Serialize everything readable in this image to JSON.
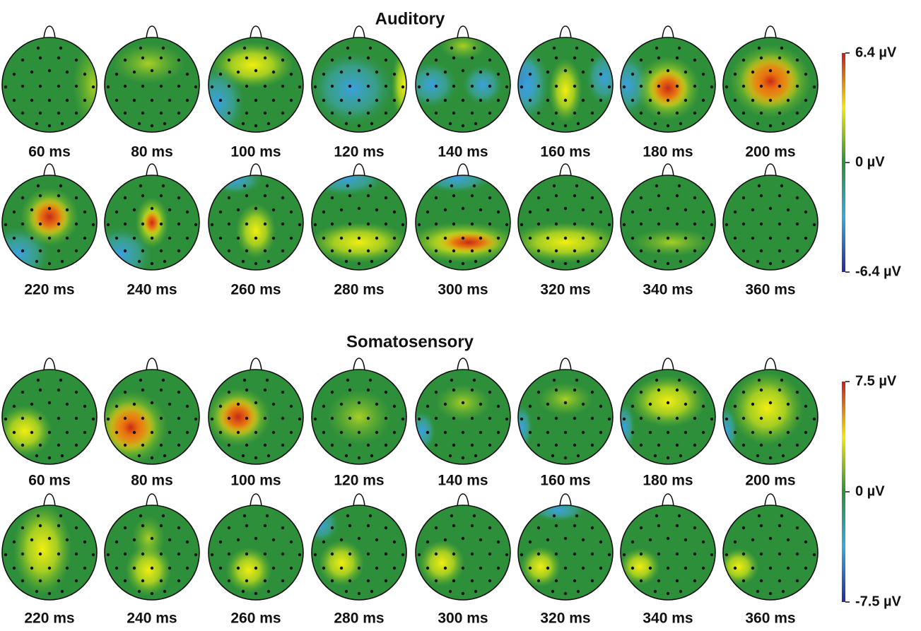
{
  "panels": [
    {
      "title": "Auditory",
      "maps": [
        "60 ms",
        "80 ms",
        "100 ms",
        "120 ms",
        "140 ms",
        "160 ms",
        "180 ms",
        "200 ms",
        "220 ms",
        "240 ms",
        "260 ms",
        "280 ms",
        "300 ms",
        "320 ms",
        "340 ms",
        "360 ms"
      ],
      "colorbar": {
        "max": "6.4 µV",
        "mid": "0 µV",
        "min": "-6.4 µV"
      }
    },
    {
      "title": "Somatosensory",
      "maps": [
        "60 ms",
        "80 ms",
        "100 ms",
        "120 ms",
        "140 ms",
        "160 ms",
        "180 ms",
        "200 ms",
        "220 ms",
        "240 ms",
        "260 ms",
        "280 ms",
        "300 ms",
        "320 ms",
        "340 ms",
        "360 ms"
      ],
      "colorbar": {
        "max": "7.5 µV",
        "mid": "0 µV",
        "min": "-7.5 µV"
      }
    }
  ]
}
